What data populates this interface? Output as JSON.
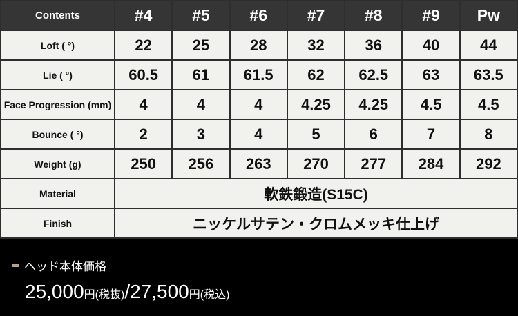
{
  "header": {
    "label": "Contents",
    "columns": [
      "#4",
      "#5",
      "#6",
      "#7",
      "#8",
      "#9",
      "Pw"
    ]
  },
  "rows": [
    {
      "label": "Loft ( °)",
      "values": [
        "22",
        "25",
        "28",
        "32",
        "36",
        "40",
        "44"
      ]
    },
    {
      "label": "Lie ( °)",
      "values": [
        "60.5",
        "61",
        "61.5",
        "62",
        "62.5",
        "63",
        "63.5"
      ]
    },
    {
      "label": "Face Progression (mm)",
      "values": [
        "4",
        "4",
        "4",
        "4.25",
        "4.25",
        "4.5",
        "4.5"
      ]
    },
    {
      "label": "Bounce ( °)",
      "values": [
        "2",
        "3",
        "4",
        "5",
        "6",
        "7",
        "8"
      ]
    },
    {
      "label": "Weight (g)",
      "values": [
        "250",
        "256",
        "263",
        "270",
        "277",
        "284",
        "292"
      ]
    }
  ],
  "material": {
    "label": "Material",
    "value": "軟鉄鍛造(S15C)"
  },
  "finish": {
    "label": "Finish",
    "value": "ニッケルサテン・クロムメッキ仕上げ"
  },
  "price": {
    "title": "ヘッド本体価格",
    "excl": "25,000",
    "yen1": "円",
    "excl_note": "(税抜)",
    "sep": "/",
    "incl": "27,500",
    "yen2": "円",
    "incl_note": "(税込)"
  },
  "colors": {
    "accent": "#b89f86",
    "header_bg": "#353535",
    "cell_bg": "#f1f1ed"
  }
}
